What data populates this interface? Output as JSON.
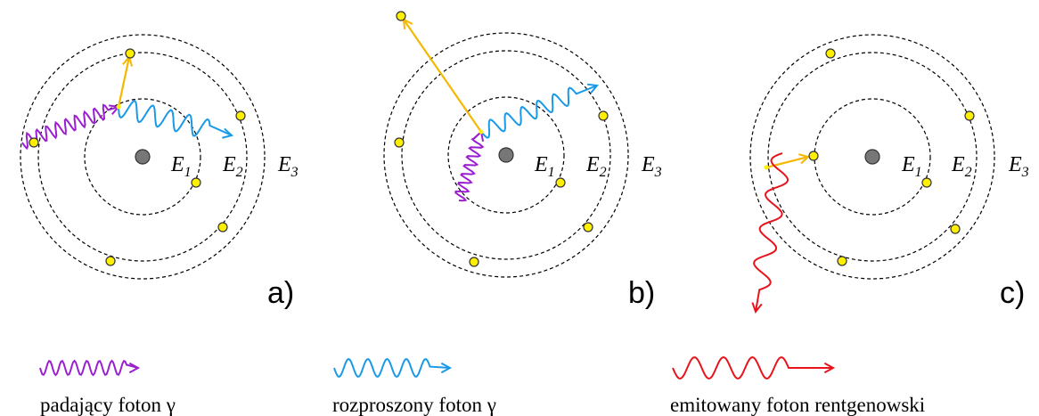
{
  "panels": [
    {
      "label": "a)",
      "levels": [
        {
          "symbol": "E",
          "index": "1"
        },
        {
          "symbol": "E",
          "index": "2"
        },
        {
          "symbol": "E",
          "index": "3"
        }
      ]
    },
    {
      "label": "b)",
      "levels": [
        {
          "symbol": "E",
          "index": "1"
        },
        {
          "symbol": "E",
          "index": "2"
        },
        {
          "symbol": "E",
          "index": "3"
        }
      ]
    },
    {
      "label": "c)",
      "levels": [
        {
          "symbol": "E",
          "index": "1"
        },
        {
          "symbol": "E",
          "index": "2"
        },
        {
          "symbol": "E",
          "index": "3"
        }
      ]
    }
  ],
  "legend": [
    {
      "text": "padający foton γ"
    },
    {
      "text": "rozproszony foton γ"
    },
    {
      "text": "emitowany foton rentgenowski"
    }
  ]
}
